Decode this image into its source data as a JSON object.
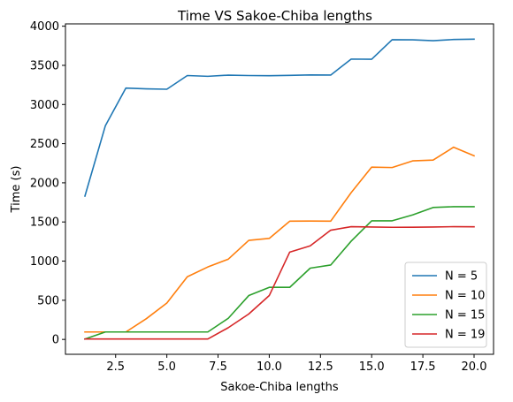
{
  "chart_data": {
    "type": "line",
    "title": "Time VS Sakoe-Chiba lengths",
    "xlabel": "Sakoe-Chiba lengths",
    "ylabel": "Time (s)",
    "xlim": [
      0.05,
      20.95
    ],
    "ylim": [
      -190,
      4030
    ],
    "x_ticks": [
      2.5,
      5.0,
      7.5,
      10.0,
      12.5,
      15.0,
      17.5,
      20.0
    ],
    "x_tick_labels": [
      "2.5",
      "5.0",
      "7.5",
      "10.0",
      "12.5",
      "15.0",
      "17.5",
      "20.0"
    ],
    "y_ticks": [
      0,
      500,
      1000,
      1500,
      2000,
      2500,
      3000,
      3500,
      4000
    ],
    "y_tick_labels": [
      "0",
      "500",
      "1000",
      "1500",
      "2000",
      "2500",
      "3000",
      "3500",
      "4000"
    ],
    "grid": false,
    "legend_position": "bottom-right",
    "x": [
      1,
      2,
      3,
      4,
      5,
      6,
      7,
      8,
      9,
      10,
      11,
      12,
      13,
      14,
      15,
      16,
      17,
      18,
      19,
      20
    ],
    "series": [
      {
        "name": "N = 5",
        "color": "#1f77b4",
        "values": [
          1830,
          2730,
          3210,
          3200,
          3195,
          3370,
          3360,
          3375,
          3370,
          3368,
          3372,
          3378,
          3376,
          3580,
          3578,
          3828,
          3826,
          3815,
          3830,
          3835
        ]
      },
      {
        "name": "N = 10",
        "color": "#ff7f0e",
        "values": [
          95,
          95,
          95,
          265,
          465,
          800,
          925,
          1025,
          1265,
          1290,
          1510,
          1512,
          1510,
          1875,
          2200,
          2195,
          2280,
          2290,
          2455,
          2345
        ]
      },
      {
        "name": "N = 15",
        "color": "#2ca02c",
        "values": [
          5,
          95,
          95,
          95,
          95,
          95,
          95,
          270,
          560,
          665,
          665,
          910,
          950,
          1255,
          1515,
          1515,
          1590,
          1685,
          1695,
          1695
        ]
      },
      {
        "name": "N = 19",
        "color": "#d62728",
        "values": [
          5,
          5,
          5,
          5,
          5,
          5,
          5,
          150,
          325,
          560,
          1115,
          1195,
          1395,
          1440,
          1435,
          1432,
          1433,
          1435,
          1440,
          1438
        ]
      }
    ]
  }
}
